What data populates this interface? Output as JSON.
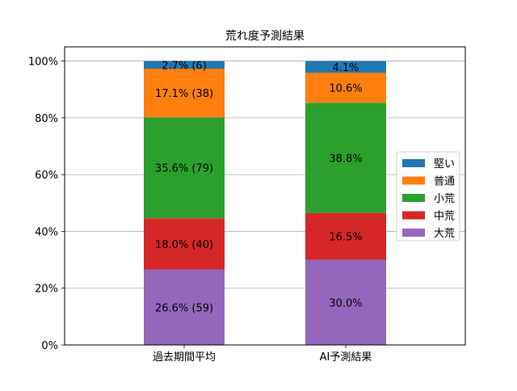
{
  "chart_data": {
    "type": "bar",
    "stacked": true,
    "title": "荒れ度予測結果",
    "xlabel": "",
    "ylabel": "",
    "categories": [
      "過去期間平均",
      "AI予測結果"
    ],
    "ylim": [
      0,
      105
    ],
    "yticks": [
      0,
      20,
      40,
      60,
      80,
      100
    ],
    "ytick_labels": [
      "0%",
      "20%",
      "40%",
      "60%",
      "80%",
      "100%"
    ],
    "grid": "horizontal",
    "legend_position": "center-right",
    "series": [
      {
        "name": "大荒",
        "color": "#9467bd",
        "values": [
          26.6,
          30.0
        ],
        "labels": [
          "26.6% (59)",
          "30.0%"
        ]
      },
      {
        "name": "中荒",
        "color": "#d62728",
        "values": [
          18.0,
          16.5
        ],
        "labels": [
          "18.0% (40)",
          "16.5%"
        ]
      },
      {
        "name": "小荒",
        "color": "#2ca02c",
        "values": [
          35.6,
          38.8
        ],
        "labels": [
          "35.6% (79)",
          "38.8%"
        ]
      },
      {
        "name": "普通",
        "color": "#ff7f0e",
        "values": [
          17.1,
          10.6
        ],
        "labels": [
          "17.1% (38)",
          "10.6%"
        ]
      },
      {
        "name": "堅い",
        "color": "#1f77b4",
        "values": [
          2.7,
          4.1
        ],
        "labels": [
          "2.7% (6)",
          "4.1%"
        ]
      }
    ]
  }
}
